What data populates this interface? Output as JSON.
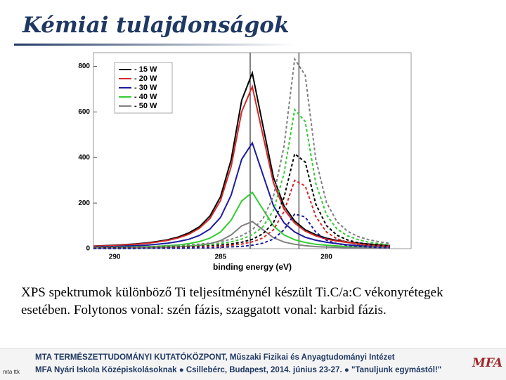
{
  "slide": {
    "title": "Kémiai tulajdonságok",
    "caption": "XPS spektrumok különböző Ti teljesítménynél készült Ti.C/a:C vékonyrétegek esetében. Folytonos vonal: szén fázis, szaggatott vonal: karbid fázis.",
    "footer_line1": "MTA  TERMÉSZETTUDOMÁNYI  KUTATÓKÖZPONT, Műszaki Fizikai és Anyagtudományi Intézet",
    "footer_line2": "MFA Nyári Iskola Középiskolásoknak ● Csillebérc, Budapest, 2014. június 23-27. ● \"Tanuljunk egymástól!\"",
    "logo_left": "mta ttk",
    "logo_right": "MFA"
  },
  "chart_data": {
    "type": "line",
    "x_label": "binding energy (eV)",
    "x": [
      291,
      290.5,
      290,
      289.5,
      289,
      288.5,
      288,
      287.5,
      287,
      286.5,
      286,
      285.5,
      285,
      284.5,
      284,
      283.5,
      283,
      282.5,
      282,
      281.5,
      281,
      280.5,
      280,
      279.5,
      279,
      278.5,
      278,
      277.5,
      277
    ],
    "xlim": [
      291,
      276
    ],
    "xticks": [
      290,
      285,
      280
    ],
    "ylim": [
      0,
      860
    ],
    "yticks": [
      0,
      200,
      400,
      600,
      800
    ],
    "vlines": [
      283.6,
      281.3
    ],
    "series": [
      {
        "name": "- 15 W",
        "color": "#000000",
        "values": [
          11,
          13,
          15,
          18,
          21,
          25,
          31,
          39,
          51,
          69,
          96,
          143,
          228,
          390,
          651,
          771,
          540,
          313,
          187,
          121,
          83,
          61,
          46,
          36,
          29,
          24,
          20,
          17,
          14
        ]
      },
      {
        "name": "- 20 W",
        "color": "#d42a2a",
        "values": [
          11,
          12,
          14,
          16,
          19,
          23,
          29,
          36,
          47,
          63,
          89,
          132,
          211,
          360,
          601,
          711,
          498,
          289,
          173,
          112,
          77,
          56,
          42,
          33,
          27,
          22,
          18,
          15,
          13
        ]
      },
      {
        "name": "- 30 W",
        "color": "#1c1c9c",
        "values": [
          7,
          8,
          9,
          11,
          13,
          15,
          19,
          24,
          31,
          41,
          58,
          86,
          137,
          235,
          392,
          464,
          325,
          188,
          113,
          73,
          50,
          37,
          28,
          22,
          17,
          14,
          12,
          10,
          9
        ]
      },
      {
        "name": "- 40 W",
        "color": "#33cc33",
        "values": [
          4,
          4,
          5,
          6,
          7,
          8,
          10,
          13,
          16,
          22,
          31,
          46,
          73,
          125,
          209,
          247,
          173,
          100,
          60,
          39,
          27,
          19,
          15,
          12,
          9,
          8,
          6,
          5,
          5
        ]
      },
      {
        "name": "- 50 W",
        "color": "#808080",
        "values": [
          2,
          2,
          2,
          3,
          3,
          4,
          5,
          6,
          8,
          11,
          15,
          22,
          35,
          60,
          100,
          119,
          83,
          48,
          29,
          19,
          13,
          9,
          7,
          6,
          4,
          4,
          3,
          3,
          2
        ]
      },
      {
        "color": "#808080",
        "dash": true,
        "values": [
          5,
          5,
          6,
          6,
          7,
          8,
          10,
          11,
          13,
          16,
          20,
          24,
          31,
          41,
          57,
          83,
          131,
          229,
          450,
          832,
          761,
          391,
          203,
          118,
          76,
          53,
          39,
          30,
          23
        ]
      },
      {
        "color": "#33cc33",
        "dash": true,
        "values": [
          3,
          4,
          4,
          5,
          5,
          6,
          7,
          8,
          10,
          12,
          14,
          18,
          23,
          30,
          42,
          61,
          96,
          168,
          330,
          610,
          558,
          286,
          149,
          86,
          56,
          39,
          28,
          22,
          17
        ]
      },
      {
        "color": "#000000",
        "dash": true,
        "values": [
          2,
          3,
          3,
          3,
          4,
          4,
          5,
          6,
          7,
          8,
          10,
          12,
          16,
          21,
          28,
          41,
          65,
          114,
          225,
          416,
          380,
          195,
          101,
          59,
          38,
          26,
          19,
          15,
          12
        ]
      },
      {
        "color": "#d42a2a",
        "dash": true,
        "values": [
          2,
          2,
          2,
          2,
          3,
          3,
          4,
          4,
          5,
          6,
          7,
          9,
          11,
          15,
          20,
          30,
          47,
          83,
          163,
          300,
          275,
          141,
          73,
          43,
          28,
          19,
          14,
          11,
          8
        ]
      },
      {
        "color": "#1c1c9c",
        "dash": true,
        "values": [
          1,
          1,
          1,
          1,
          1,
          2,
          2,
          2,
          2,
          3,
          4,
          4,
          6,
          8,
          10,
          15,
          24,
          42,
          83,
          152,
          139,
          72,
          37,
          22,
          14,
          10,
          7,
          5,
          4
        ]
      }
    ]
  }
}
